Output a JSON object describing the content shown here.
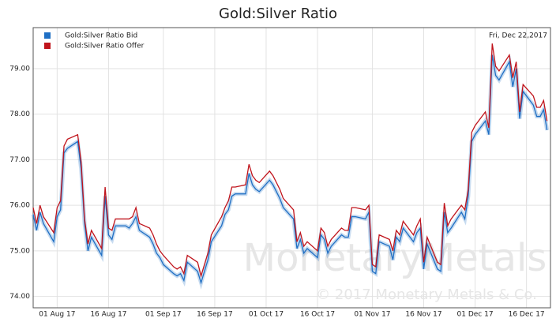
{
  "chart_data": {
    "type": "line",
    "title": "Gold:Silver Ratio",
    "annotation": "Fri, Dec 22,2017",
    "watermark": [
      "MonetaryMetals",
      "© 2017 Monetary Metals & Co."
    ],
    "legend": "upper left",
    "grid": true,
    "x": [
      "2017-07-25",
      "2017-07-26",
      "2017-07-27",
      "2017-07-28",
      "2017-07-31",
      "2017-08-01",
      "2017-08-02",
      "2017-08-03",
      "2017-08-04",
      "2017-08-07",
      "2017-08-08",
      "2017-08-09",
      "2017-08-10",
      "2017-08-11",
      "2017-08-14",
      "2017-08-15",
      "2017-08-16",
      "2017-08-17",
      "2017-08-18",
      "2017-08-21",
      "2017-08-22",
      "2017-08-23",
      "2017-08-24",
      "2017-08-25",
      "2017-08-28",
      "2017-08-29",
      "2017-08-30",
      "2017-08-31",
      "2017-09-01",
      "2017-09-04",
      "2017-09-05",
      "2017-09-06",
      "2017-09-07",
      "2017-09-08",
      "2017-09-11",
      "2017-09-12",
      "2017-09-13",
      "2017-09-14",
      "2017-09-15",
      "2017-09-18",
      "2017-09-19",
      "2017-09-20",
      "2017-09-21",
      "2017-09-22",
      "2017-09-25",
      "2017-09-26",
      "2017-09-27",
      "2017-09-28",
      "2017-09-29",
      "2017-10-02",
      "2017-10-03",
      "2017-10-04",
      "2017-10-05",
      "2017-10-06",
      "2017-10-09",
      "2017-10-10",
      "2017-10-11",
      "2017-10-12",
      "2017-10-13",
      "2017-10-16",
      "2017-10-17",
      "2017-10-18",
      "2017-10-19",
      "2017-10-20",
      "2017-10-23",
      "2017-10-24",
      "2017-10-25",
      "2017-10-26",
      "2017-10-27",
      "2017-10-30",
      "2017-10-31",
      "2017-11-01",
      "2017-11-02",
      "2017-11-03",
      "2017-11-06",
      "2017-11-07",
      "2017-11-08",
      "2017-11-09",
      "2017-11-10",
      "2017-11-13",
      "2017-11-14",
      "2017-11-15",
      "2017-11-16",
      "2017-11-17",
      "2017-11-20",
      "2017-11-21",
      "2017-11-22",
      "2017-11-23",
      "2017-11-24",
      "2017-11-27",
      "2017-11-28",
      "2017-11-29",
      "2017-11-30",
      "2017-12-01",
      "2017-12-04",
      "2017-12-05",
      "2017-12-06",
      "2017-12-07",
      "2017-12-08",
      "2017-12-11",
      "2017-12-12",
      "2017-12-13",
      "2017-12-14",
      "2017-12-15",
      "2017-12-18",
      "2017-12-19",
      "2017-12-20",
      "2017-12-21",
      "2017-12-22"
    ],
    "series": [
      {
        "name": "Gold:Silver Ratio Bid",
        "color": "#1f6fc4",
        "values": [
          75.8,
          75.45,
          75.85,
          75.6,
          75.2,
          75.75,
          75.9,
          77.15,
          77.25,
          77.4,
          76.8,
          75.6,
          75.0,
          75.3,
          74.9,
          76.2,
          75.35,
          75.25,
          75.55,
          75.55,
          75.5,
          75.6,
          75.75,
          75.45,
          75.3,
          75.15,
          74.95,
          74.85,
          74.7,
          74.5,
          74.45,
          74.5,
          74.35,
          74.75,
          74.55,
          74.3,
          74.55,
          74.8,
          75.2,
          75.55,
          75.8,
          75.9,
          76.2,
          76.25,
          76.25,
          76.7,
          76.45,
          76.35,
          76.3,
          76.55,
          76.45,
          76.3,
          76.15,
          75.95,
          75.7,
          75.05,
          75.25,
          74.95,
          75.05,
          74.85,
          75.35,
          75.25,
          74.95,
          75.1,
          75.35,
          75.3,
          75.3,
          75.75,
          75.75,
          75.7,
          75.85,
          74.55,
          74.5,
          75.2,
          75.1,
          74.8,
          75.3,
          75.2,
          75.5,
          75.2,
          75.4,
          75.5,
          74.6,
          75.15,
          74.6,
          74.55,
          75.85,
          75.4,
          75.5,
          75.85,
          75.7,
          76.2,
          77.4,
          77.55,
          77.85,
          77.55,
          79.3,
          78.85,
          78.75,
          79.15,
          78.6,
          79.0,
          77.9,
          78.5,
          78.2,
          77.95,
          77.95,
          78.1,
          77.65
        ]
      },
      {
        "name": "Gold:Silver Ratio Offer",
        "color": "#c0141c",
        "values": [
          75.95,
          75.6,
          76.0,
          75.75,
          75.4,
          75.95,
          76.1,
          77.3,
          77.45,
          77.55,
          76.95,
          75.7,
          75.15,
          75.45,
          75.05,
          76.4,
          75.5,
          75.45,
          75.7,
          75.7,
          75.7,
          75.75,
          75.95,
          75.6,
          75.5,
          75.35,
          75.15,
          75.0,
          74.9,
          74.65,
          74.6,
          74.65,
          74.5,
          74.9,
          74.75,
          74.45,
          74.7,
          74.95,
          75.35,
          75.75,
          75.95,
          76.1,
          76.4,
          76.4,
          76.45,
          76.9,
          76.65,
          76.55,
          76.5,
          76.75,
          76.65,
          76.5,
          76.35,
          76.15,
          75.9,
          75.2,
          75.4,
          75.1,
          75.2,
          75.0,
          75.5,
          75.4,
          75.1,
          75.25,
          75.5,
          75.45,
          75.45,
          75.95,
          75.95,
          75.9,
          76.0,
          74.7,
          74.65,
          75.35,
          75.25,
          75.0,
          75.45,
          75.35,
          75.65,
          75.35,
          75.55,
          75.7,
          74.75,
          75.3,
          74.75,
          74.7,
          76.05,
          75.55,
          75.7,
          76.0,
          75.9,
          76.35,
          77.6,
          77.75,
          78.05,
          77.7,
          79.55,
          79.05,
          78.95,
          79.3,
          78.8,
          79.15,
          78.05,
          78.65,
          78.4,
          78.15,
          78.15,
          78.3,
          77.85
        ]
      }
    ],
    "xlim": [
      "2017-07-25",
      "2017-12-23"
    ],
    "xticks": [
      {
        "value": "2017-08-01",
        "label": "01 Aug 17"
      },
      {
        "value": "2017-08-16",
        "label": "16 Aug 17"
      },
      {
        "value": "2017-09-01",
        "label": "01 Sep 17"
      },
      {
        "value": "2017-09-16",
        "label": "16 Sep 17"
      },
      {
        "value": "2017-10-01",
        "label": "01 Oct 17"
      },
      {
        "value": "2017-10-16",
        "label": "16 Oct 17"
      },
      {
        "value": "2017-11-01",
        "label": "01 Nov 17"
      },
      {
        "value": "2017-11-16",
        "label": "16 Nov 17"
      },
      {
        "value": "2017-12-01",
        "label": "01 Dec 17"
      },
      {
        "value": "2017-12-16",
        "label": "16 Dec 17"
      }
    ],
    "ylim": [
      73.75,
      79.9
    ],
    "yticks": [
      {
        "value": 74,
        "label": "74.00"
      },
      {
        "value": 75,
        "label": "75.00"
      },
      {
        "value": 76,
        "label": "76.00"
      },
      {
        "value": 77,
        "label": "77.00"
      },
      {
        "value": 78,
        "label": "78.00"
      },
      {
        "value": 79,
        "label": "79.00"
      }
    ]
  }
}
